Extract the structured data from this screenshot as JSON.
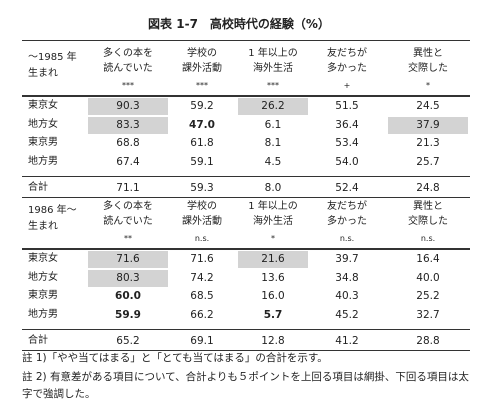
{
  "title": "図表 1-7　高校時代の経験（%）",
  "columns": [
    [
      "多くの本を",
      "読んでいた"
    ],
    [
      "学校の",
      "課外活動"
    ],
    [
      "1 年以上の",
      "海外生活"
    ],
    [
      "友だちが",
      "多かった"
    ],
    [
      "異性と",
      "交際した"
    ]
  ],
  "panels": [
    {
      "label": [
        "～1985 年",
        "生まれ"
      ],
      "significance": [
        "***",
        "***",
        "***",
        "+",
        "*"
      ],
      "rows": [
        {
          "name": "東京女",
          "values": [
            "90.3",
            "59.2",
            "26.2",
            "51.5",
            "24.5"
          ],
          "shaded": [
            0,
            2
          ],
          "bold": []
        },
        {
          "name": "地方女",
          "values": [
            "83.3",
            "47.0",
            "6.1",
            "36.4",
            "37.9"
          ],
          "shaded": [
            0,
            4
          ],
          "bold": [
            1
          ]
        },
        {
          "name": "東京男",
          "values": [
            "68.8",
            "61.8",
            "8.1",
            "53.4",
            "21.3"
          ],
          "shaded": [],
          "bold": []
        },
        {
          "name": "地方男",
          "values": [
            "67.4",
            "59.1",
            "4.5",
            "54.0",
            "25.7"
          ],
          "shaded": [],
          "bold": []
        }
      ],
      "total": {
        "name": "合計",
        "values": [
          "71.1",
          "59.3",
          "8.0",
          "52.4",
          "24.8"
        ]
      }
    },
    {
      "label": [
        "1986 年～",
        "生まれ"
      ],
      "significance": [
        "**",
        "n.s.",
        "*",
        "n.s.",
        "n.s."
      ],
      "rows": [
        {
          "name": "東京女",
          "values": [
            "71.6",
            "71.6",
            "21.6",
            "39.7",
            "16.4"
          ],
          "shaded": [
            0,
            2
          ],
          "bold": []
        },
        {
          "name": "地方女",
          "values": [
            "80.3",
            "74.2",
            "13.6",
            "34.8",
            "40.0"
          ],
          "shaded": [
            0
          ],
          "bold": []
        },
        {
          "name": "東京男",
          "values": [
            "60.0",
            "68.5",
            "16.0",
            "40.3",
            "25.2"
          ],
          "shaded": [],
          "bold": [
            0
          ]
        },
        {
          "name": "地方男",
          "values": [
            "59.9",
            "66.2",
            "5.7",
            "45.2",
            "32.7"
          ],
          "shaded": [],
          "bold": [
            0,
            2
          ]
        }
      ],
      "total": {
        "name": "合計",
        "values": [
          "65.2",
          "69.1",
          "12.8",
          "41.2",
          "28.8"
        ]
      }
    }
  ],
  "notes": [
    "註 1)「やや当てはまる」と「とても当てはまる」の合計を示す。",
    "註 2) 有意差がある項目について、合計よりも５ポイントを上回る項目は網掛、下回る項目は太字で強調した。"
  ]
}
